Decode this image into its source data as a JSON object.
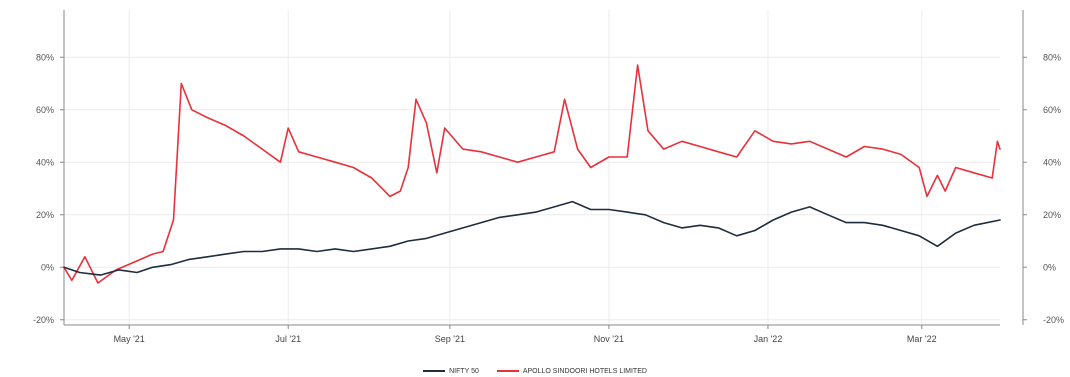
{
  "chart_data": {
    "type": "line",
    "title": "",
    "xlabel": "",
    "ylabel": "",
    "x_ticks": [
      "May '21",
      "Jul '21",
      "Sep '21",
      "Nov '21",
      "Jan '22",
      "Mar '22"
    ],
    "x_tick_dates": [
      "2021-05-01",
      "2021-07-01",
      "2021-09-01",
      "2021-11-01",
      "2022-01-01",
      "2022-03-01"
    ],
    "x_range": [
      "2021-04-06",
      "2022-03-31"
    ],
    "y_ticks": [
      "-20%",
      "0%",
      "20%",
      "40%",
      "60%",
      "80%"
    ],
    "y_tick_values": [
      -20,
      0,
      20,
      40,
      60,
      80
    ],
    "ylim": [
      -22,
      98
    ],
    "grid": true,
    "legend_position": "bottom",
    "series": [
      {
        "name": "NIFTY 50",
        "color": "#1f2d3d",
        "points": [
          [
            "2021-04-06",
            0
          ],
          [
            "2021-04-12",
            -2
          ],
          [
            "2021-04-20",
            -3
          ],
          [
            "2021-04-27",
            -1
          ],
          [
            "2021-05-04",
            -2
          ],
          [
            "2021-05-10",
            0
          ],
          [
            "2021-05-17",
            1
          ],
          [
            "2021-05-24",
            3
          ],
          [
            "2021-05-31",
            4
          ],
          [
            "2021-06-07",
            5
          ],
          [
            "2021-06-14",
            6
          ],
          [
            "2021-06-21",
            6
          ],
          [
            "2021-06-28",
            7
          ],
          [
            "2021-07-05",
            7
          ],
          [
            "2021-07-12",
            6
          ],
          [
            "2021-07-19",
            7
          ],
          [
            "2021-07-26",
            6
          ],
          [
            "2021-08-02",
            7
          ],
          [
            "2021-08-09",
            8
          ],
          [
            "2021-08-16",
            10
          ],
          [
            "2021-08-23",
            11
          ],
          [
            "2021-08-30",
            13
          ],
          [
            "2021-09-06",
            15
          ],
          [
            "2021-09-13",
            17
          ],
          [
            "2021-09-20",
            19
          ],
          [
            "2021-09-27",
            20
          ],
          [
            "2021-10-04",
            21
          ],
          [
            "2021-10-11",
            23
          ],
          [
            "2021-10-18",
            25
          ],
          [
            "2021-10-25",
            22
          ],
          [
            "2021-11-01",
            22
          ],
          [
            "2021-11-08",
            21
          ],
          [
            "2021-11-15",
            20
          ],
          [
            "2021-11-22",
            17
          ],
          [
            "2021-11-29",
            15
          ],
          [
            "2021-12-06",
            16
          ],
          [
            "2021-12-13",
            15
          ],
          [
            "2021-12-20",
            12
          ],
          [
            "2021-12-27",
            14
          ],
          [
            "2022-01-03",
            18
          ],
          [
            "2022-01-10",
            21
          ],
          [
            "2022-01-17",
            23
          ],
          [
            "2022-01-24",
            20
          ],
          [
            "2022-01-31",
            17
          ],
          [
            "2022-02-07",
            17
          ],
          [
            "2022-02-14",
            16
          ],
          [
            "2022-02-21",
            14
          ],
          [
            "2022-02-28",
            12
          ],
          [
            "2022-03-07",
            8
          ],
          [
            "2022-03-14",
            13
          ],
          [
            "2022-03-21",
            16
          ],
          [
            "2022-03-31",
            18
          ]
        ]
      },
      {
        "name": "APOLLO SINDOORI HOTELS LIMITED",
        "color": "#e8313a",
        "points": [
          [
            "2021-04-06",
            0
          ],
          [
            "2021-04-09",
            -5
          ],
          [
            "2021-04-14",
            4
          ],
          [
            "2021-04-19",
            -6
          ],
          [
            "2021-04-26",
            -1
          ],
          [
            "2021-05-03",
            2
          ],
          [
            "2021-05-10",
            5
          ],
          [
            "2021-05-14",
            6
          ],
          [
            "2021-05-18",
            18
          ],
          [
            "2021-05-21",
            70
          ],
          [
            "2021-05-25",
            60
          ],
          [
            "2021-05-31",
            57
          ],
          [
            "2021-06-07",
            54
          ],
          [
            "2021-06-14",
            50
          ],
          [
            "2021-06-21",
            45
          ],
          [
            "2021-06-28",
            40
          ],
          [
            "2021-07-01",
            53
          ],
          [
            "2021-07-05",
            44
          ],
          [
            "2021-07-12",
            42
          ],
          [
            "2021-07-19",
            40
          ],
          [
            "2021-07-26",
            38
          ],
          [
            "2021-08-02",
            34
          ],
          [
            "2021-08-09",
            27
          ],
          [
            "2021-08-13",
            29
          ],
          [
            "2021-08-16",
            38
          ],
          [
            "2021-08-19",
            64
          ],
          [
            "2021-08-23",
            55
          ],
          [
            "2021-08-27",
            36
          ],
          [
            "2021-08-30",
            53
          ],
          [
            "2021-09-06",
            45
          ],
          [
            "2021-09-13",
            44
          ],
          [
            "2021-09-20",
            42
          ],
          [
            "2021-09-27",
            40
          ],
          [
            "2021-10-04",
            42
          ],
          [
            "2021-10-11",
            44
          ],
          [
            "2021-10-15",
            64
          ],
          [
            "2021-10-20",
            45
          ],
          [
            "2021-10-25",
            38
          ],
          [
            "2021-11-01",
            42
          ],
          [
            "2021-11-08",
            42
          ],
          [
            "2021-11-12",
            77
          ],
          [
            "2021-11-16",
            52
          ],
          [
            "2021-11-22",
            45
          ],
          [
            "2021-11-29",
            48
          ],
          [
            "2021-12-06",
            46
          ],
          [
            "2021-12-13",
            44
          ],
          [
            "2021-12-20",
            42
          ],
          [
            "2021-12-27",
            52
          ],
          [
            "2022-01-03",
            48
          ],
          [
            "2022-01-10",
            47
          ],
          [
            "2022-01-17",
            48
          ],
          [
            "2022-01-24",
            45
          ],
          [
            "2022-01-31",
            42
          ],
          [
            "2022-02-07",
            46
          ],
          [
            "2022-02-14",
            45
          ],
          [
            "2022-02-21",
            43
          ],
          [
            "2022-02-28",
            38
          ],
          [
            "2022-03-03",
            27
          ],
          [
            "2022-03-07",
            35
          ],
          [
            "2022-03-10",
            29
          ],
          [
            "2022-03-14",
            38
          ],
          [
            "2022-03-21",
            36
          ],
          [
            "2022-03-28",
            34
          ],
          [
            "2022-03-30",
            48
          ],
          [
            "2022-03-31",
            45
          ]
        ]
      }
    ]
  }
}
